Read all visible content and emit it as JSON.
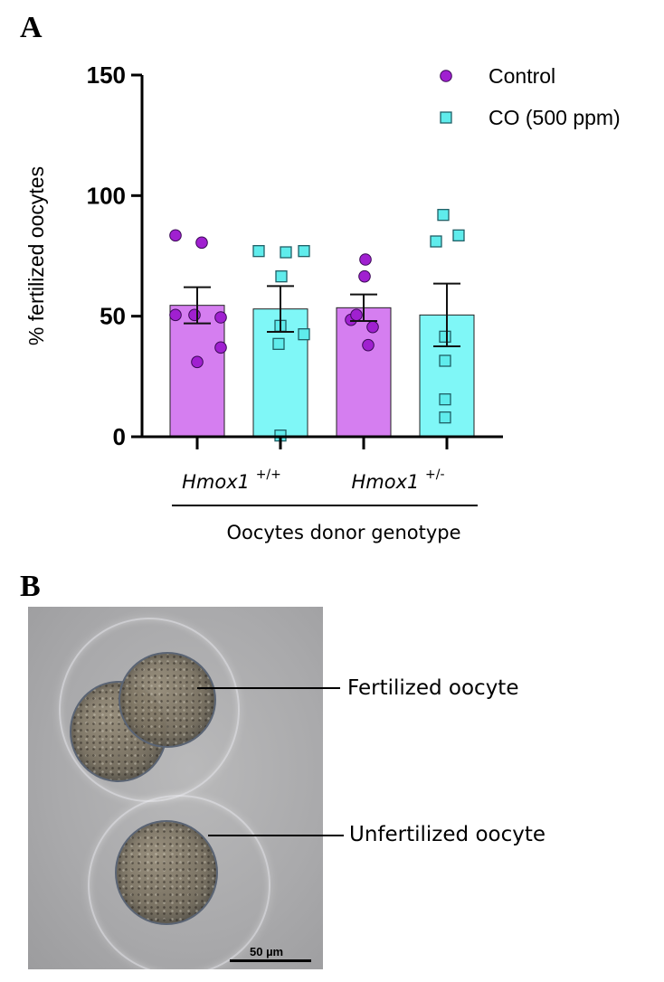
{
  "panels": {
    "a_label": "A",
    "b_label": "B"
  },
  "chart_data": {
    "type": "bar",
    "title": "",
    "ylabel": "% fertilized oocytes",
    "xlabel": "Oocytes donor genotype",
    "ylim": [
      0,
      150
    ],
    "yticks": [
      0,
      50,
      100,
      150
    ],
    "grid": false,
    "legend_position": "top-right",
    "groups": [
      {
        "label": "Hmox1",
        "superscript": "+/+"
      },
      {
        "label": "Hmox1",
        "superscript": "+/-"
      }
    ],
    "series": [
      {
        "name": "Control",
        "marker": "circle",
        "bar_color": "#d57ef0",
        "marker_color": "#a020d0",
        "means": [
          54.5,
          53.5
        ],
        "sem": [
          7.5,
          5.5
        ],
        "points": [
          [
            83.5,
            80.5,
            50.5,
            49.5,
            50.5,
            37.0,
            31.0
          ],
          [
            73.5,
            66.5,
            48.5,
            45.5,
            50.5,
            38.0
          ]
        ]
      },
      {
        "name": "CO (500 ppm)",
        "marker": "square",
        "bar_color": "#7ff7f7",
        "marker_color": "#5fecec",
        "means": [
          53.0,
          50.5
        ],
        "sem": [
          9.5,
          13.0
        ],
        "points": [
          [
            77.0,
            76.5,
            77.0,
            66.5,
            46.0,
            42.5,
            38.5,
            0.5
          ],
          [
            92.0,
            81.0,
            83.5,
            41.5,
            31.5,
            15.5,
            8.0
          ]
        ]
      }
    ]
  },
  "micrograph": {
    "scale_bar_label": "50 µm",
    "annotations": {
      "fertilized": "Fertilized oocyte",
      "unfertilized": "Unfertilized oocyte"
    }
  }
}
